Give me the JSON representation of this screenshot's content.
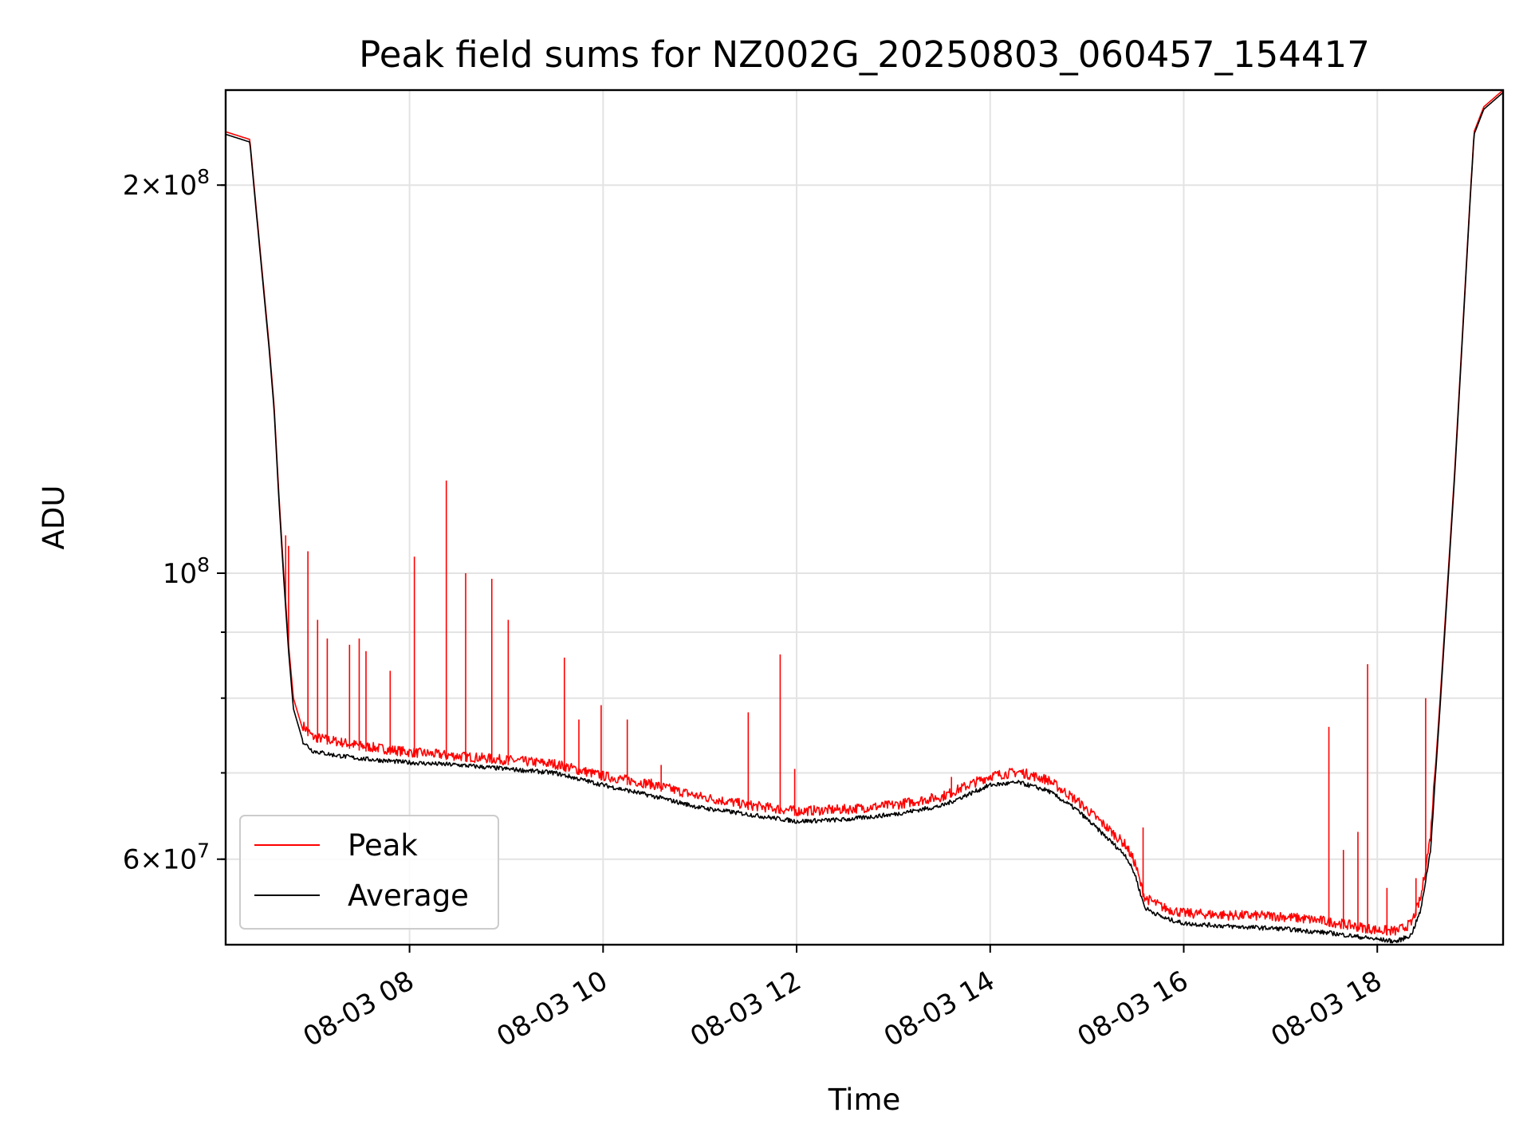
{
  "chart_data": {
    "type": "line",
    "title": "Peak field sums for NZ002G_20250803_060457_154417",
    "xlabel": "Time",
    "ylabel": "ADU",
    "yscale": "log",
    "x_unit": "time of day (hours), 2025-08-03",
    "xlim": [
      6.1,
      19.3
    ],
    "ylim": [
      51500000,
      237000000
    ],
    "x_ticks": [
      {
        "value": 8,
        "label": "08-03 08"
      },
      {
        "value": 10,
        "label": "08-03 10"
      },
      {
        "value": 12,
        "label": "08-03 12"
      },
      {
        "value": 14,
        "label": "08-03 14"
      },
      {
        "value": 16,
        "label": "08-03 16"
      },
      {
        "value": 18,
        "label": "08-03 18"
      }
    ],
    "y_ticks": [
      {
        "value": 60000000,
        "base": "6",
        "exp": "7"
      },
      {
        "value": 100000000,
        "base": "",
        "exp": "8"
      },
      {
        "value": 200000000,
        "base": "2",
        "exp": "8"
      }
    ],
    "y_minor_ticks": [
      50000000,
      60000000,
      70000000,
      80000000,
      90000000,
      100000000,
      200000000
    ],
    "grid": true,
    "legend_position": "lower-left",
    "series": [
      {
        "name": "Peak",
        "color": "#ff0000",
        "x": [
          6.1,
          6.35,
          6.45,
          6.55,
          6.6,
          6.65,
          6.7,
          6.75,
          6.8,
          6.9,
          7.0,
          7.2,
          7.5,
          8.0,
          8.5,
          9.0,
          9.5,
          10.0,
          10.5,
          11.0,
          11.5,
          12.0,
          12.5,
          13.0,
          13.5,
          13.8,
          14.0,
          14.3,
          14.6,
          14.9,
          15.2,
          15.4,
          15.5,
          15.55,
          15.6,
          15.8,
          16.0,
          16.5,
          17.0,
          17.5,
          18.0,
          18.2,
          18.35,
          18.45,
          18.55,
          18.65,
          18.8,
          18.95,
          19.0,
          19.1,
          19.3
        ],
        "y": [
          220000000,
          217000000,
          180000000,
          150000000,
          135000000,
          115000000,
          100000000,
          88000000,
          80000000,
          75500000,
          74000000,
          73500000,
          72800000,
          72000000,
          71500000,
          71000000,
          70500000,
          69000000,
          68000000,
          66500000,
          65500000,
          64800000,
          65000000,
          65500000,
          66500000,
          68000000,
          69000000,
          69500000,
          68500000,
          66000000,
          63000000,
          61000000,
          59000000,
          57000000,
          55500000,
          54500000,
          54000000,
          53800000,
          53700000,
          53200000,
          52400000,
          52300000,
          53000000,
          55500000,
          62000000,
          80000000,
          120000000,
          190000000,
          220000000,
          230000000,
          237000000
        ],
        "spikes": [
          {
            "x": 6.72,
            "y": 107000000
          },
          {
            "x": 6.75,
            "y": 105000000
          },
          {
            "x": 6.95,
            "y": 104000000
          },
          {
            "x": 7.05,
            "y": 92000000
          },
          {
            "x": 7.15,
            "y": 89000000
          },
          {
            "x": 7.38,
            "y": 88000000
          },
          {
            "x": 7.48,
            "y": 89000000
          },
          {
            "x": 7.55,
            "y": 87000000
          },
          {
            "x": 7.8,
            "y": 84000000
          },
          {
            "x": 8.05,
            "y": 103000000
          },
          {
            "x": 8.38,
            "y": 118000000
          },
          {
            "x": 8.58,
            "y": 100000000
          },
          {
            "x": 8.85,
            "y": 99000000
          },
          {
            "x": 9.02,
            "y": 92000000
          },
          {
            "x": 9.6,
            "y": 86000000
          },
          {
            "x": 9.75,
            "y": 77000000
          },
          {
            "x": 9.98,
            "y": 79000000
          },
          {
            "x": 10.25,
            "y": 77000000
          },
          {
            "x": 10.6,
            "y": 71000000
          },
          {
            "x": 11.5,
            "y": 78000000
          },
          {
            "x": 11.83,
            "y": 86500000
          },
          {
            "x": 11.98,
            "y": 70500000
          },
          {
            "x": 13.6,
            "y": 69500000
          },
          {
            "x": 15.58,
            "y": 63500000
          },
          {
            "x": 17.5,
            "y": 76000000
          },
          {
            "x": 17.65,
            "y": 61000000
          },
          {
            "x": 17.8,
            "y": 63000000
          },
          {
            "x": 17.9,
            "y": 85000000
          },
          {
            "x": 18.1,
            "y": 57000000
          },
          {
            "x": 18.4,
            "y": 58000000
          },
          {
            "x": 18.5,
            "y": 80000000
          }
        ]
      },
      {
        "name": "Average",
        "color": "#000000",
        "x": [
          6.1,
          6.35,
          6.45,
          6.55,
          6.6,
          6.65,
          6.7,
          6.75,
          6.8,
          6.9,
          7.0,
          7.2,
          7.5,
          8.0,
          8.5,
          9.0,
          9.5,
          10.0,
          10.5,
          11.0,
          11.5,
          12.0,
          12.5,
          13.0,
          13.5,
          13.8,
          14.0,
          14.3,
          14.6,
          14.9,
          15.2,
          15.4,
          15.5,
          15.55,
          15.6,
          15.8,
          16.0,
          16.5,
          17.0,
          17.5,
          18.0,
          18.2,
          18.35,
          18.45,
          18.55,
          18.65,
          18.8,
          18.95,
          19.0,
          19.1,
          19.3
        ],
        "y": [
          219000000,
          216000000,
          179000000,
          149000000,
          134000000,
          114000000,
          99000000,
          87000000,
          78500000,
          74000000,
          72800000,
          72300000,
          71800000,
          71300000,
          71000000,
          70500000,
          70000000,
          68500000,
          67200000,
          65800000,
          65000000,
          64200000,
          64400000,
          65000000,
          66000000,
          67500000,
          68500000,
          68800000,
          67800000,
          65500000,
          62400000,
          60400000,
          58300000,
          56500000,
          55000000,
          54000000,
          53500000,
          53200000,
          53000000,
          52600000,
          52000000,
          51800000,
          52400000,
          54800000,
          61000000,
          79000000,
          119000000,
          189000000,
          219000000,
          229000000,
          236000000
        ]
      }
    ]
  }
}
